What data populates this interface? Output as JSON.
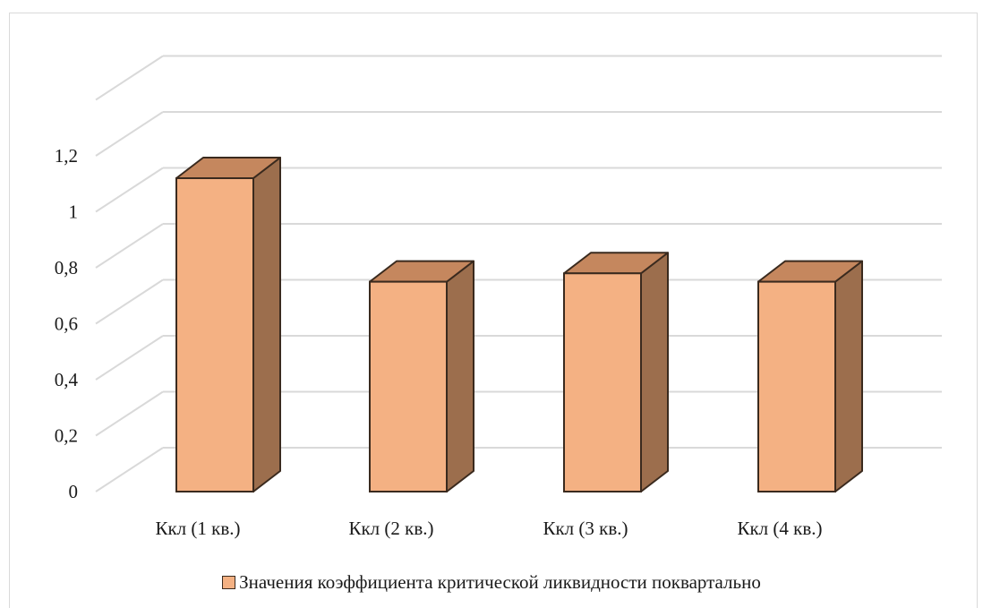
{
  "chart_data": {
    "type": "bar",
    "categories": [
      "Ккл (1 кв.)",
      "Ккл (2 кв.)",
      "Ккл (3 кв.)",
      "Ккл (4 кв.)"
    ],
    "series": [
      {
        "name": "Значения коэффициента критической ликвидности поквартально",
        "values": [
          1.12,
          0.75,
          0.78,
          0.75
        ]
      }
    ],
    "ylim": [
      0,
      1.2
    ],
    "yticks": [
      0,
      0.2,
      0.4,
      0.6,
      0.8,
      1,
      1.2
    ],
    "ytick_labels": [
      "0",
      "0,2",
      "0,4",
      "0,6",
      "0,8",
      "1",
      "1,2"
    ],
    "title": "",
    "xlabel": "",
    "ylabel": "",
    "style": "3d-column",
    "grid": true,
    "legend_position": "bottom",
    "colors": {
      "front": "#f4b183",
      "top": "#c5875e",
      "side": "#9c6e4d",
      "edge": "#3a2a1e",
      "grid": "#d9d9d9"
    }
  }
}
